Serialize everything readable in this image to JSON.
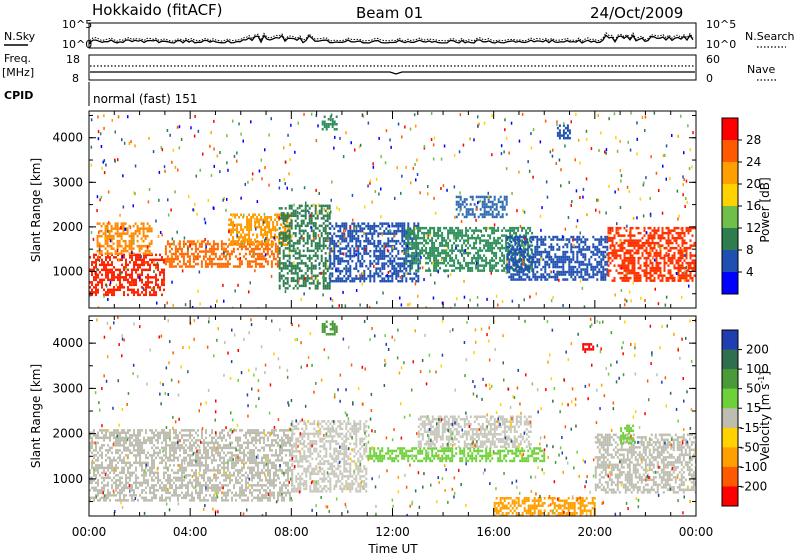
{
  "header": {
    "site": "Hokkaido (fitACF)",
    "beam": "Beam 01",
    "date": "24/Oct/2009"
  },
  "noise_panel": {
    "left_label": "N.Sky",
    "right_label": "N.Search",
    "left_ticks": [
      "10^5",
      "10^0"
    ],
    "right_ticks": [
      "10^5",
      "10^0"
    ]
  },
  "freq_panel": {
    "left_label_1": "Freq.",
    "left_label_2": "[MHz]",
    "right_label": "Nave",
    "left_ticks": [
      "18",
      "8"
    ],
    "right_ticks": [
      "60",
      "0"
    ]
  },
  "cpid_panel": {
    "label": "CPID",
    "value": "normal (fast) 151"
  },
  "chart_data": [
    {
      "type": "heatmap",
      "title": "",
      "xlabel": "Time UT",
      "ylabel": "Slant Range [km]",
      "x_ticks": [
        "00:00",
        "04:00",
        "08:00",
        "12:00",
        "16:00",
        "20:00",
        "00:00"
      ],
      "y_ticks": [
        "1000",
        "2000",
        "3000",
        "4000"
      ],
      "xlim_hours": [
        0,
        24
      ],
      "ylim_km": [
        180,
        4600
      ],
      "colorbar": {
        "label": "Power [dB]",
        "ticks": [
          "28",
          "24",
          "20",
          "16",
          "12",
          "8",
          "4"
        ],
        "colors": [
          "#ff0000",
          "#ff5a00",
          "#ffa000",
          "#ffd200",
          "#6fbf4a",
          "#2e7d4f",
          "#1f4fb0",
          "#0000ff"
        ]
      },
      "regions": [
        {
          "t0": 0.0,
          "t1": 3.0,
          "r0": 500,
          "r1": 1400,
          "color": "#ff2200"
        },
        {
          "t0": 0.3,
          "t1": 2.5,
          "r0": 1400,
          "r1": 2100,
          "color": "#ff8800"
        },
        {
          "t0": 3.0,
          "t1": 7.5,
          "r0": 1100,
          "r1": 1700,
          "color": "#ff6a00"
        },
        {
          "t0": 5.5,
          "t1": 8.0,
          "r0": 1600,
          "r1": 2300,
          "color": "#ff9a00"
        },
        {
          "t0": 7.5,
          "t1": 9.5,
          "r0": 600,
          "r1": 2500,
          "color": "#2e7d4f"
        },
        {
          "t0": 9.5,
          "t1": 13.0,
          "r0": 800,
          "r1": 2100,
          "color": "#1f4fb0"
        },
        {
          "t0": 12.5,
          "t1": 17.5,
          "r0": 1000,
          "r1": 2000,
          "color": "#2e8f5a"
        },
        {
          "t0": 14.5,
          "t1": 16.5,
          "r0": 2200,
          "r1": 2700,
          "color": "#2d6ab0"
        },
        {
          "t0": 16.5,
          "t1": 20.5,
          "r0": 800,
          "r1": 1800,
          "color": "#1f4fb0"
        },
        {
          "t0": 20.5,
          "t1": 24.0,
          "r0": 800,
          "r1": 2000,
          "color": "#ff3300"
        },
        {
          "t0": 9.2,
          "t1": 9.8,
          "r0": 4200,
          "r1": 4500,
          "color": "#2e8f5a"
        },
        {
          "t0": 18.5,
          "t1": 19.0,
          "r0": 4000,
          "r1": 4300,
          "color": "#1f4fb0"
        }
      ]
    },
    {
      "type": "heatmap",
      "title": "",
      "xlabel": "Time UT",
      "ylabel": "Slant Range [km]",
      "x_ticks": [
        "00:00",
        "04:00",
        "08:00",
        "12:00",
        "16:00",
        "20:00",
        "00:00"
      ],
      "y_ticks": [
        "1000",
        "2000",
        "3000",
        "4000"
      ],
      "xlim_hours": [
        0,
        24
      ],
      "ylim_km": [
        180,
        4600
      ],
      "colorbar": {
        "label": "Velocity [m s^-1]",
        "ticks": [
          "200",
          "100",
          "50",
          "15",
          "-15",
          "-50",
          "-100",
          "-200"
        ],
        "colors": [
          "#1f3fb0",
          "#2f6e4f",
          "#4a9a3a",
          "#6fd13a",
          "#bdbdb0",
          "#ffd200",
          "#ffa000",
          "#ff5a00",
          "#ff0000"
        ]
      },
      "regions": [
        {
          "t0": 0.0,
          "t1": 8.0,
          "r0": 500,
          "r1": 2100,
          "color": "#bdbdb0"
        },
        {
          "t0": 8.0,
          "t1": 11.0,
          "r0": 700,
          "r1": 2300,
          "color": "#c8c8bc"
        },
        {
          "t0": 11.0,
          "t1": 18.0,
          "r0": 1400,
          "r1": 1700,
          "color": "#6fd13a"
        },
        {
          "t0": 13.0,
          "t1": 17.5,
          "r0": 1700,
          "r1": 2400,
          "color": "#c8c8bc"
        },
        {
          "t0": 16.0,
          "t1": 20.0,
          "r0": 200,
          "r1": 600,
          "color": "#ffa000"
        },
        {
          "t0": 20.0,
          "t1": 24.0,
          "r0": 700,
          "r1": 2000,
          "color": "#bdbdb0"
        },
        {
          "t0": 9.2,
          "t1": 9.8,
          "r0": 4200,
          "r1": 4500,
          "color": "#4a9a3a"
        },
        {
          "t0": 21.0,
          "t1": 21.5,
          "r0": 1800,
          "r1": 2200,
          "color": "#6fd13a"
        },
        {
          "t0": 19.5,
          "t1": 20.0,
          "r0": 3800,
          "r1": 4000,
          "color": "#ff0000"
        }
      ]
    }
  ]
}
